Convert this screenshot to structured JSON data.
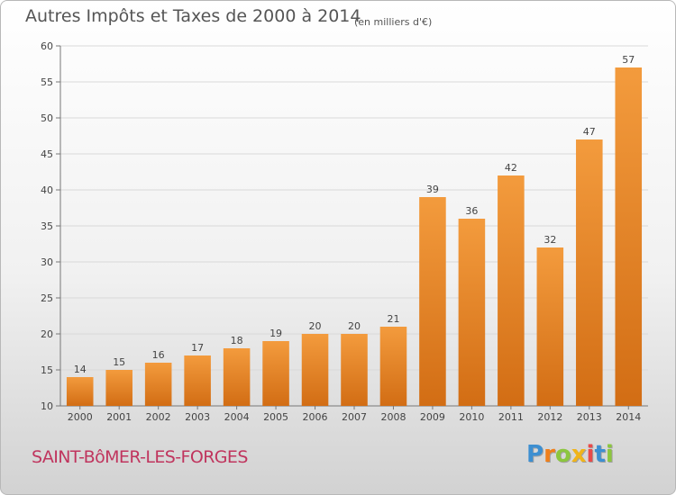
{
  "chart_data": {
    "type": "bar",
    "title": "Autres Impôts et Taxes de 2000 à 2014",
    "unit_note": "(en milliers d'€)",
    "categories": [
      "2000",
      "2001",
      "2002",
      "2003",
      "2004",
      "2005",
      "2006",
      "2007",
      "2008",
      "2009",
      "2010",
      "2011",
      "2012",
      "2013",
      "2014"
    ],
    "values": [
      14,
      15,
      16,
      17,
      18,
      19,
      20,
      20,
      21,
      39,
      36,
      42,
      32,
      47,
      57
    ],
    "ylim": [
      10,
      60
    ],
    "yticks": [
      10,
      15,
      20,
      25,
      30,
      35,
      40,
      45,
      50,
      55,
      60
    ],
    "grid": true,
    "bar_color": "#f39b3d",
    "bar_color_dark": "#d26d14"
  },
  "footer": {
    "town": "SAINT-BôMER-LES-FORGES",
    "logo_letters": [
      "P",
      "r",
      "o",
      "x",
      "i",
      "t",
      "i"
    ],
    "logo_colors": [
      "#3d8fd1",
      "#f07f1a",
      "#8cc63f",
      "#f0b41a",
      "#e84a4a",
      "#3d8fd1",
      "#8cc63f"
    ]
  }
}
